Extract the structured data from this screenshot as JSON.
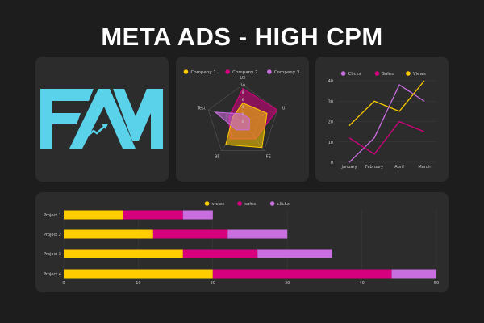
{
  "header": {
    "title": "META ADS - HIGH CPM"
  },
  "logo": {
    "text": "FAM",
    "color": "#5ad3ea"
  },
  "colors": {
    "yellow": "#ffcc00",
    "magenta": "#d6007f",
    "purple": "#c86ee0"
  },
  "chart_data": [
    {
      "type": "radar",
      "axes": [
        "UX",
        "UI",
        "FE",
        "BE",
        "Test"
      ],
      "ticks": [
        0,
        2,
        4,
        6,
        8,
        10
      ],
      "range": [
        0,
        10
      ],
      "legend_position": "top",
      "series": [
        {
          "name": "Company 1",
          "color": "#ffcc00",
          "values": [
            5,
            7,
            9,
            8,
            3
          ]
        },
        {
          "name": "Company 2",
          "color": "#d6007f",
          "values": [
            9,
            10,
            6,
            6,
            4
          ]
        },
        {
          "name": "Company 3",
          "color": "#c86ee0",
          "values": [
            2,
            2,
            3,
            3,
            8
          ]
        }
      ]
    },
    {
      "type": "line",
      "categories": [
        "January",
        "February",
        "April",
        "March"
      ],
      "yticks": [
        0,
        10,
        20,
        30,
        40
      ],
      "ylim": [
        0,
        40
      ],
      "grid": true,
      "legend_position": "top",
      "series": [
        {
          "name": "Clicks",
          "color": "#c86ee0",
          "values": [
            0,
            12,
            38,
            30
          ]
        },
        {
          "name": "Sales",
          "color": "#d6007f",
          "values": [
            12,
            4,
            20,
            15
          ]
        },
        {
          "name": "Views",
          "color": "#ffcc00",
          "values": [
            18,
            30,
            25,
            40
          ]
        }
      ]
    },
    {
      "type": "bar",
      "orientation": "horizontal",
      "stacked": true,
      "categories": [
        "Project 1",
        "Project 2",
        "Project 3",
        "Project 4"
      ],
      "xticks": [
        0,
        10,
        20,
        30,
        40,
        50
      ],
      "xlim": [
        0,
        50
      ],
      "grid": true,
      "legend_position": "top",
      "series": [
        {
          "name": "views",
          "color": "#ffcc00",
          "values": [
            8,
            12,
            16,
            20
          ]
        },
        {
          "name": "sales",
          "color": "#d6007f",
          "values": [
            8,
            10,
            10,
            24
          ]
        },
        {
          "name": "clicks",
          "color": "#c86ee0",
          "values": [
            4,
            8,
            10,
            6
          ]
        }
      ]
    }
  ]
}
